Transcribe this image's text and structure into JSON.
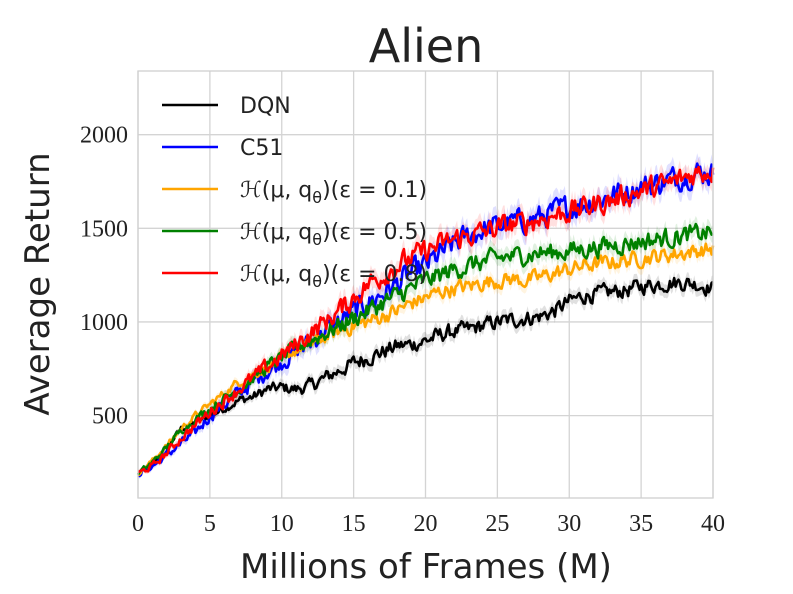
{
  "chart_data": {
    "type": "line",
    "title": "Alien",
    "xlabel": "Millions of Frames (M)",
    "ylabel": "Average Return",
    "xlim": [
      0,
      40
    ],
    "ylim": [
      60,
      2340
    ],
    "xticks": [
      0,
      5,
      10,
      15,
      20,
      25,
      30,
      35,
      40
    ],
    "yticks": [
      500,
      1000,
      1500,
      2000
    ],
    "grid": true,
    "legend_position": "top-left",
    "series": [
      {
        "name": "DQN",
        "color": "#000000",
        "noise": 45,
        "x": [
          0,
          1,
          2,
          3,
          4,
          5,
          6,
          7,
          8,
          9,
          10,
          11,
          12,
          13,
          14,
          15,
          16,
          17,
          18,
          19,
          20,
          21,
          22,
          23,
          24,
          25,
          26,
          27,
          28,
          29,
          30,
          31,
          32,
          33,
          34,
          35,
          36,
          37,
          38,
          39,
          40
        ],
        "y": [
          190,
          240,
          330,
          430,
          460,
          500,
          540,
          580,
          600,
          640,
          650,
          640,
          660,
          700,
          740,
          780,
          810,
          840,
          870,
          880,
          900,
          930,
          950,
          960,
          980,
          1000,
          1010,
          1020,
          1030,
          1060,
          1110,
          1140,
          1150,
          1160,
          1170,
          1190,
          1200,
          1210,
          1210,
          1200,
          1180
        ]
      },
      {
        "name": "C51",
        "color": "#0000ff",
        "noise": 70,
        "x": [
          0,
          1,
          2,
          3,
          4,
          5,
          6,
          7,
          8,
          9,
          10,
          11,
          12,
          13,
          14,
          15,
          16,
          17,
          18,
          19,
          20,
          21,
          22,
          23,
          24,
          25,
          26,
          27,
          28,
          29,
          30,
          31,
          32,
          33,
          34,
          35,
          36,
          37,
          38,
          39,
          40
        ],
        "y": [
          190,
          230,
          290,
          350,
          410,
          500,
          560,
          620,
          680,
          740,
          790,
          840,
          890,
          950,
          1000,
          1050,
          1100,
          1150,
          1200,
          1260,
          1300,
          1360,
          1420,
          1460,
          1490,
          1510,
          1530,
          1540,
          1560,
          1590,
          1610,
          1630,
          1650,
          1680,
          1700,
          1720,
          1740,
          1760,
          1780,
          1800,
          1790
        ]
      },
      {
        "name": "ℋ(μ, qθ)(ε = 0.1)",
        "color": "#ffa500",
        "noise": 45,
        "x": [
          0,
          1,
          2,
          3,
          4,
          5,
          6,
          7,
          8,
          9,
          10,
          11,
          12,
          13,
          14,
          15,
          16,
          17,
          18,
          19,
          20,
          21,
          22,
          23,
          24,
          25,
          26,
          27,
          28,
          29,
          30,
          31,
          32,
          33,
          34,
          35,
          36,
          37,
          38,
          39,
          40
        ],
        "y": [
          190,
          260,
          340,
          430,
          500,
          560,
          620,
          680,
          720,
          760,
          800,
          850,
          880,
          920,
          950,
          980,
          1000,
          1030,
          1060,
          1100,
          1130,
          1160,
          1180,
          1190,
          1210,
          1220,
          1230,
          1220,
          1240,
          1260,
          1280,
          1300,
          1310,
          1320,
          1330,
          1340,
          1350,
          1360,
          1370,
          1380,
          1390
        ]
      },
      {
        "name": "ℋ(μ, qθ)(ε = 0.5)",
        "color": "#008000",
        "noise": 55,
        "x": [
          0,
          1,
          2,
          3,
          4,
          5,
          6,
          7,
          8,
          9,
          10,
          11,
          12,
          13,
          14,
          15,
          16,
          17,
          18,
          19,
          20,
          21,
          22,
          23,
          24,
          25,
          26,
          27,
          28,
          29,
          30,
          31,
          32,
          33,
          34,
          35,
          36,
          37,
          38,
          39,
          40
        ],
        "y": [
          190,
          250,
          330,
          420,
          480,
          540,
          590,
          640,
          700,
          760,
          810,
          860,
          900,
          940,
          980,
          1020,
          1060,
          1100,
          1140,
          1180,
          1220,
          1250,
          1280,
          1300,
          1320,
          1340,
          1350,
          1360,
          1370,
          1370,
          1380,
          1390,
          1400,
          1410,
          1420,
          1430,
          1440,
          1450,
          1460,
          1470,
          1480
        ]
      },
      {
        "name": "ℋ(μ, qθ)(ε = 0.8)",
        "color": "#ff0000",
        "noise": 65,
        "x": [
          0,
          1,
          2,
          3,
          4,
          5,
          6,
          7,
          8,
          9,
          10,
          11,
          12,
          13,
          14,
          15,
          16,
          17,
          18,
          19,
          20,
          21,
          22,
          23,
          24,
          25,
          26,
          27,
          28,
          29,
          30,
          31,
          32,
          33,
          34,
          35,
          36,
          37,
          38,
          39,
          40
        ],
        "y": [
          190,
          230,
          300,
          380,
          450,
          520,
          580,
          640,
          700,
          760,
          820,
          880,
          940,
          1000,
          1060,
          1130,
          1200,
          1250,
          1300,
          1340,
          1380,
          1410,
          1440,
          1460,
          1480,
          1500,
          1520,
          1530,
          1550,
          1570,
          1590,
          1610,
          1630,
          1650,
          1680,
          1700,
          1720,
          1740,
          1770,
          1800,
          1810
        ]
      }
    ],
    "legend": [
      {
        "base": "ℋ(μ, q",
        "sub": "θ",
        "tail": ")(ε = 0.1)"
      },
      {
        "base": "ℋ(μ, q",
        "sub": "θ",
        "tail": ")(ε = 0.5)"
      },
      {
        "base": "ℋ(μ, q",
        "sub": "θ",
        "tail": ")(ε = 0.8)"
      }
    ]
  }
}
